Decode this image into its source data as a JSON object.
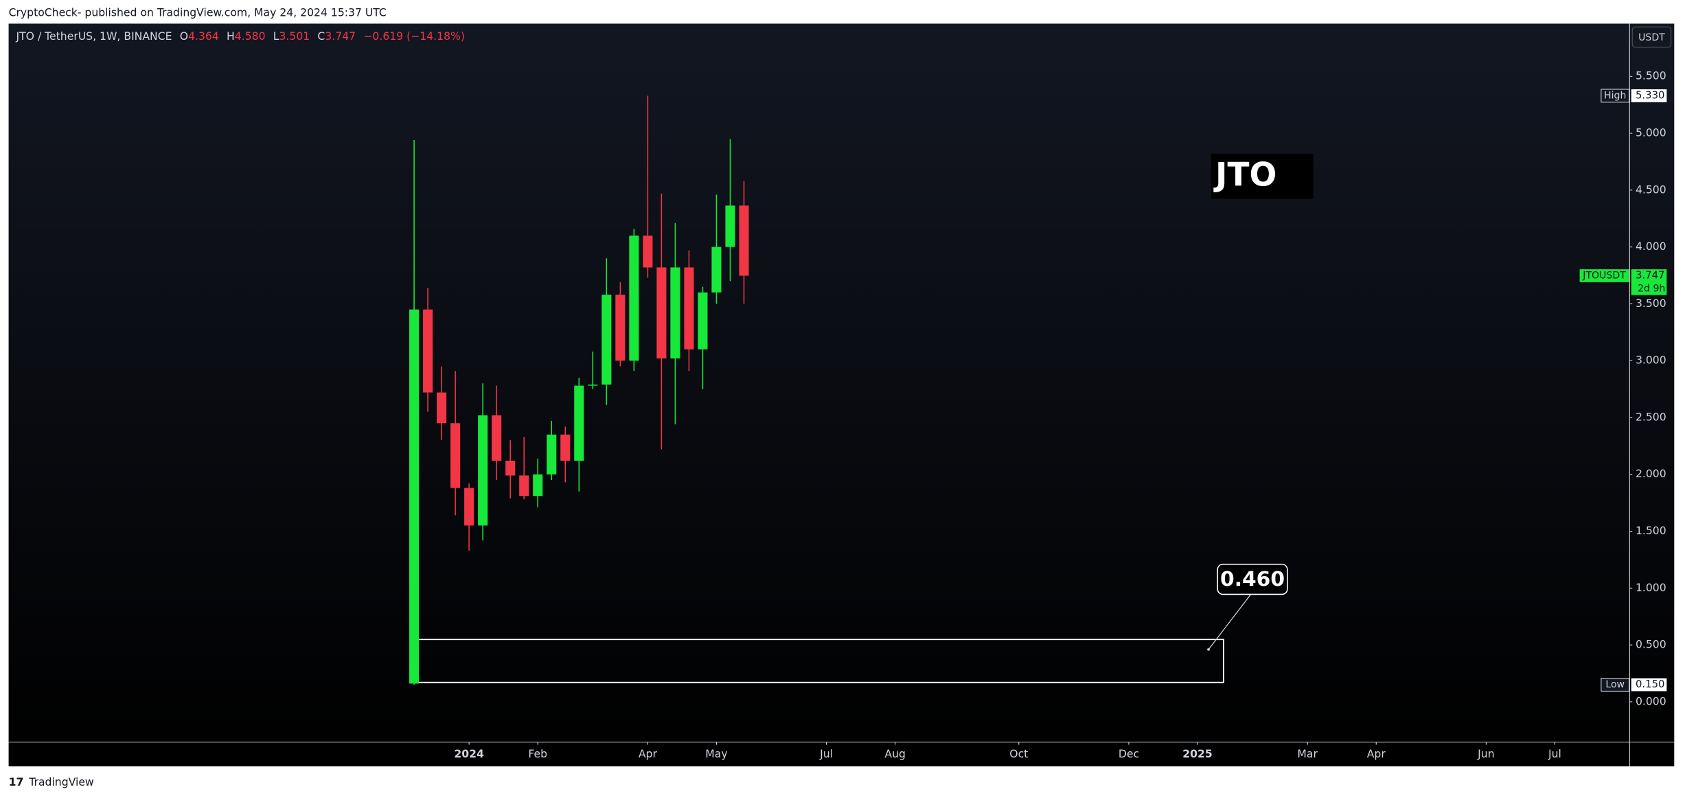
{
  "header": "CryptoCheck- published on TradingView.com, May 24, 2024 15:37 UTC",
  "footer": "TradingView",
  "legend": {
    "symbol": "JTO / TetherUS, 1W, BINANCE",
    "items": [
      {
        "key": "O",
        "value": "4.364"
      },
      {
        "key": "H",
        "value": "4.580"
      },
      {
        "key": "L",
        "value": "3.501"
      },
      {
        "key": "C",
        "value": "3.747"
      }
    ],
    "change": "−0.619 (−14.18%)"
  },
  "currency": "USDT",
  "chart_data": {
    "type": "candlestick",
    "x": [
      0,
      1,
      2,
      3,
      4,
      5,
      6,
      7,
      8,
      9,
      10,
      11,
      12,
      13,
      14,
      15,
      16,
      17,
      18,
      19,
      20,
      21,
      22,
      23,
      24
    ],
    "open": [
      0.16,
      3.45,
      2.72,
      2.45,
      1.88,
      1.55,
      2.52,
      2.12,
      1.99,
      1.81,
      2.0,
      2.35,
      2.12,
      2.78,
      2.79,
      3.58,
      3.0,
      4.1,
      3.82,
      3.02,
      3.82,
      3.1,
      3.6,
      4.0,
      4.364
    ],
    "high": [
      4.94,
      3.64,
      2.95,
      2.91,
      1.92,
      2.8,
      2.78,
      2.3,
      2.33,
      2.14,
      2.47,
      2.42,
      2.85,
      3.08,
      3.9,
      3.69,
      4.16,
      5.33,
      4.47,
      4.21,
      3.97,
      3.65,
      4.46,
      4.95,
      4.58
    ],
    "low": [
      0.15,
      2.55,
      2.3,
      1.64,
      1.33,
      1.42,
      1.95,
      1.79,
      1.78,
      1.71,
      1.95,
      1.93,
      1.85,
      2.75,
      2.61,
      2.95,
      2.91,
      3.73,
      2.22,
      2.44,
      2.91,
      2.75,
      3.5,
      3.7,
      3.501
    ],
    "close": [
      3.45,
      2.72,
      2.45,
      1.88,
      1.55,
      2.52,
      2.12,
      1.99,
      1.81,
      2.0,
      2.35,
      2.12,
      2.78,
      2.79,
      3.58,
      3.0,
      4.1,
      3.82,
      3.02,
      3.82,
      3.1,
      3.6,
      4.0,
      4.364,
      3.747
    ],
    "up_color": "#17e83a",
    "down_color": "#f23645",
    "xlim": [
      -29.5,
      88.4
    ],
    "xticks": [
      {
        "value": 4,
        "label": "2024"
      },
      {
        "value": 9,
        "label": "Feb"
      },
      {
        "value": 17,
        "label": "Apr"
      },
      {
        "value": 22,
        "label": "May"
      },
      {
        "value": 30,
        "label": "Jul"
      },
      {
        "value": 35,
        "label": "Aug"
      },
      {
        "value": 44,
        "label": "Oct"
      },
      {
        "value": 52,
        "label": "Dec"
      },
      {
        "value": 57,
        "label": "2025"
      },
      {
        "value": 65,
        "label": "Mar"
      },
      {
        "value": 70,
        "label": "Apr"
      },
      {
        "value": 78,
        "label": "Jun"
      },
      {
        "value": 83,
        "label": "Jul"
      }
    ],
    "ylim": [
      -0.35,
      5.964
    ],
    "yticks": [
      {
        "value": 0,
        "label": "0.000"
      },
      {
        "value": 0.5,
        "label": "0.500"
      },
      {
        "value": 1,
        "label": "1.000"
      },
      {
        "value": 1.5,
        "label": "1.500"
      },
      {
        "value": 2,
        "label": "2.000"
      },
      {
        "value": 2.5,
        "label": "2.500"
      },
      {
        "value": 3,
        "label": "3.000"
      },
      {
        "value": 3.5,
        "label": "3.500"
      },
      {
        "value": 4,
        "label": "4.000"
      },
      {
        "value": 4.5,
        "label": "4.500"
      },
      {
        "value": 5,
        "label": "5.000"
      },
      {
        "value": 5.5,
        "label": "5.500"
      }
    ],
    "high_marker": {
      "name": "High",
      "value": 5.33,
      "label": "5.330"
    },
    "low_marker": {
      "name": "Low",
      "value": 0.15,
      "label": "0.150"
    },
    "last_price": {
      "name": "JTOUSDT",
      "value": 3.747,
      "countdown": "2d 9h"
    },
    "zone": {
      "x": [
        0.3,
        58.9
      ],
      "y": [
        0.17,
        0.548
      ]
    },
    "symbol_note": "JTO",
    "annotation": {
      "text": "0.460",
      "x": 57.8,
      "value": 0.46
    }
  }
}
